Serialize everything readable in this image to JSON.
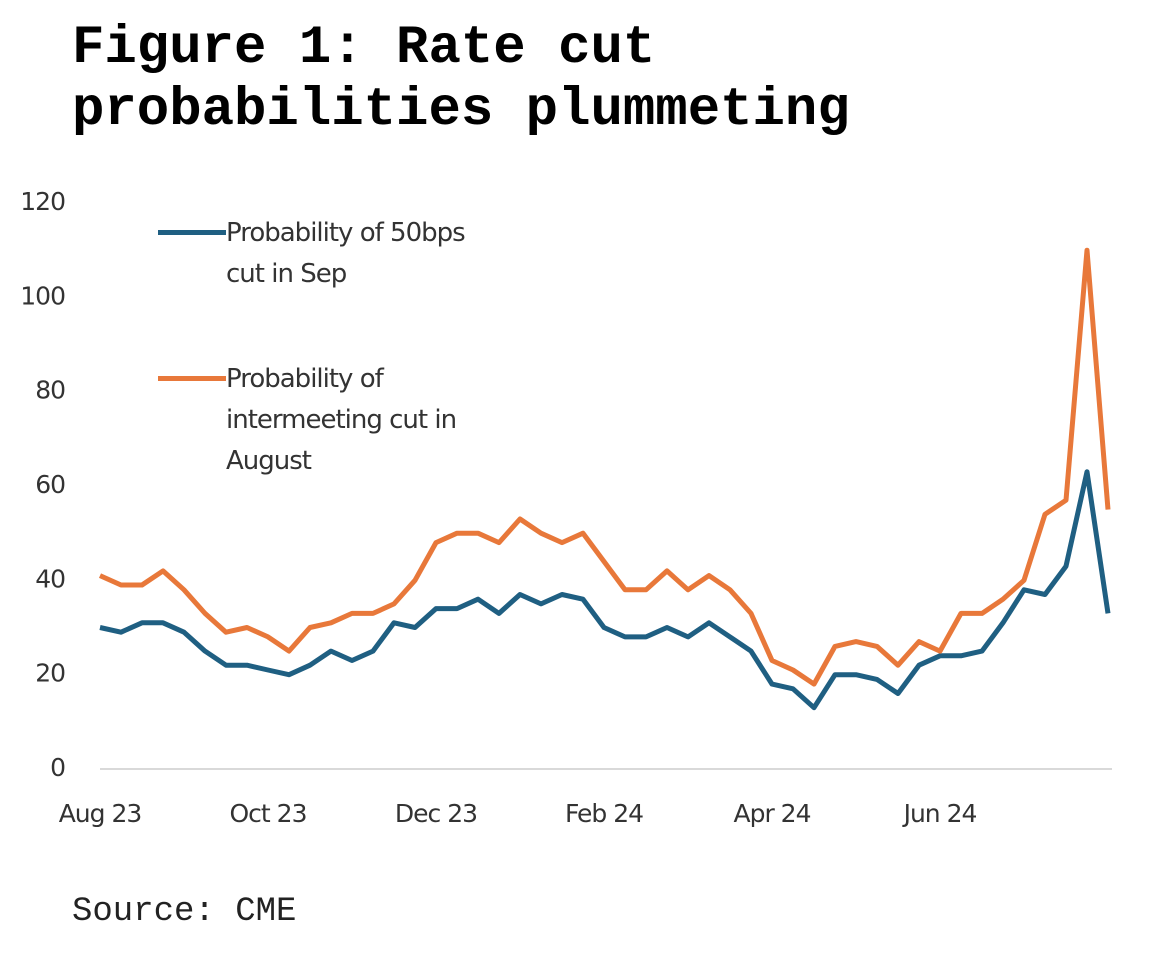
{
  "chart_data": {
    "type": "line",
    "title": "Figure 1: Rate cut probabilities plummeting",
    "source": "Source: CME",
    "categories": [
      "Aug 23",
      null,
      null,
      null,
      null,
      null,
      null,
      null,
      "Oct 23",
      null,
      null,
      null,
      null,
      null,
      null,
      null,
      "Dec 23",
      null,
      null,
      null,
      null,
      null,
      null,
      null,
      "Feb 24",
      null,
      null,
      null,
      null,
      null,
      null,
      null,
      "Apr 24",
      null,
      null,
      null,
      null,
      null,
      null,
      null,
      "Jun 24",
      null,
      null,
      null,
      null,
      null,
      null,
      null,
      null
    ],
    "series": [
      {
        "name": "Probability of 50bps cut in Sep",
        "color": "#1f5f82",
        "values": [
          30,
          29,
          31,
          31,
          29,
          25,
          22,
          22,
          21,
          20,
          22,
          25,
          23,
          25,
          31,
          30,
          34,
          34,
          36,
          33,
          37,
          35,
          37,
          36,
          30,
          28,
          28,
          30,
          28,
          31,
          28,
          25,
          18,
          17,
          13,
          20,
          20,
          19,
          16,
          22,
          24,
          24,
          25,
          31,
          38,
          37,
          43,
          63,
          33
        ]
      },
      {
        "name": "Probability of intermeeting cut in August",
        "color": "#e8783a",
        "values": [
          41,
          39,
          39,
          42,
          38,
          33,
          29,
          30,
          28,
          25,
          30,
          31,
          33,
          33,
          35,
          40,
          48,
          50,
          50,
          48,
          53,
          50,
          48,
          50,
          44,
          38,
          38,
          42,
          38,
          41,
          38,
          33,
          23,
          21,
          18,
          26,
          27,
          26,
          22,
          27,
          25,
          33,
          33,
          36,
          40,
          54,
          57,
          110,
          55
        ]
      }
    ],
    "ylim": [
      0,
      120
    ],
    "yticks": [
      0,
      20,
      40,
      60,
      80,
      100,
      120
    ],
    "grid": false
  }
}
